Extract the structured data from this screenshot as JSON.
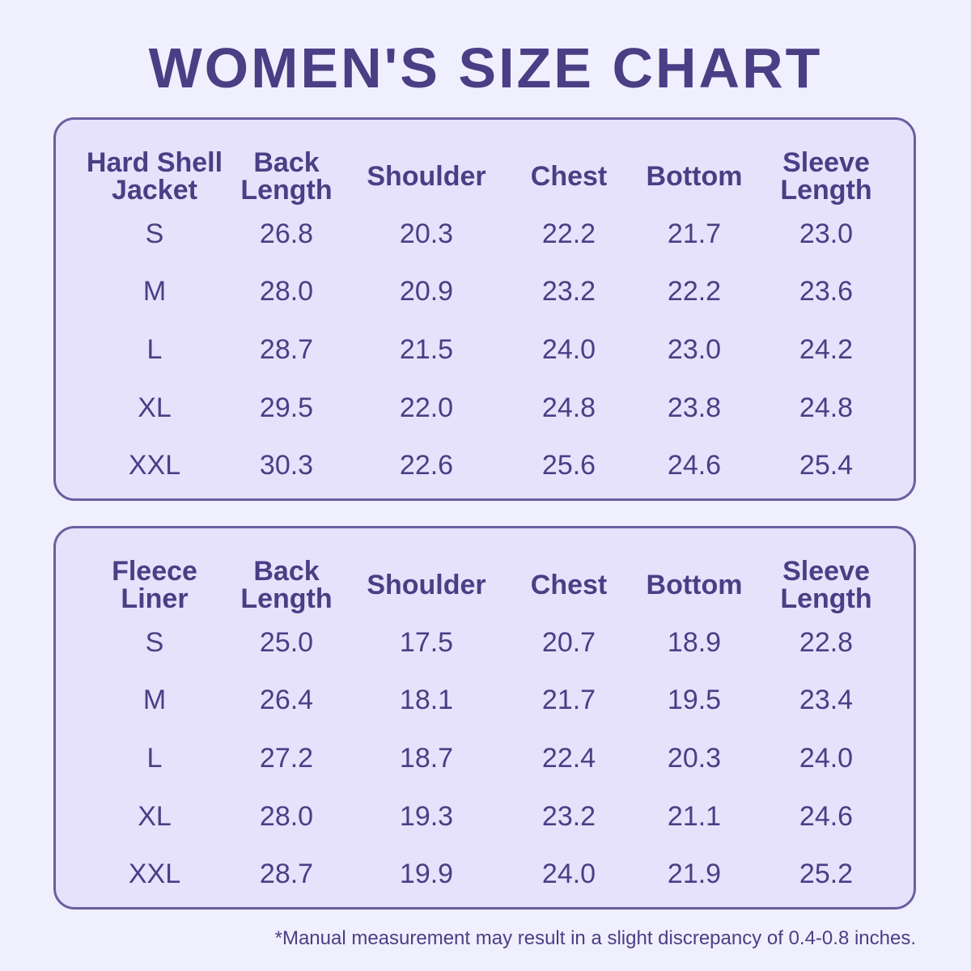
{
  "title": "WOMEN'S SIZE CHART",
  "columns": [
    "Back\nLength",
    "Shoulder",
    "Chest",
    "Bottom",
    "Sleeve\nLength"
  ],
  "tables": [
    {
      "label": "Hard Shell\nJacket",
      "rows": [
        {
          "size": "S",
          "values": [
            "26.8",
            "20.3",
            "22.2",
            "21.7",
            "23.0"
          ]
        },
        {
          "size": "M",
          "values": [
            "28.0",
            "20.9",
            "23.2",
            "22.2",
            "23.6"
          ]
        },
        {
          "size": "L",
          "values": [
            "28.7",
            "21.5",
            "24.0",
            "23.0",
            "24.2"
          ]
        },
        {
          "size": "XL",
          "values": [
            "29.5",
            "22.0",
            "24.8",
            "23.8",
            "24.8"
          ]
        },
        {
          "size": "XXL",
          "values": [
            "30.3",
            "22.6",
            "25.6",
            "24.6",
            "25.4"
          ]
        }
      ]
    },
    {
      "label": "Fleece\nLiner",
      "rows": [
        {
          "size": "S",
          "values": [
            "25.0",
            "17.5",
            "20.7",
            "18.9",
            "22.8"
          ]
        },
        {
          "size": "M",
          "values": [
            "26.4",
            "18.1",
            "21.7",
            "19.5",
            "23.4"
          ]
        },
        {
          "size": "L",
          "values": [
            "27.2",
            "18.7",
            "22.4",
            "20.3",
            "24.0"
          ]
        },
        {
          "size": "XL",
          "values": [
            "28.0",
            "19.3",
            "23.2",
            "21.1",
            "24.6"
          ]
        },
        {
          "size": "XXL",
          "values": [
            "28.7",
            "19.9",
            "24.0",
            "21.9",
            "25.2"
          ]
        }
      ]
    }
  ],
  "footnote": "*Manual measurement may result in a slight discrepancy of 0.4-0.8 inches."
}
